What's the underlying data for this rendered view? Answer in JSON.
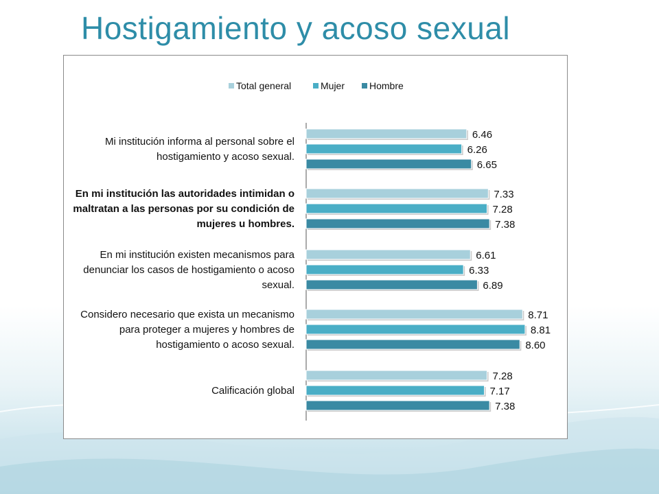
{
  "slide": {
    "title": "Hostigamiento y acoso sexual"
  },
  "colors": {
    "title": "#2e8da8",
    "series": [
      "#a8d0dc",
      "#4aaec6",
      "#3a8aa3"
    ]
  },
  "chart_data": {
    "type": "bar",
    "orientation": "horizontal",
    "categories": [
      [
        "Mi institución informa al personal sobre el",
        "hostigamiento y acoso sexual."
      ],
      [
        "En mi institución las autoridades intimidan o",
        "maltratan a las personas por su condición de",
        "mujeres u hombres."
      ],
      [
        "En mi institución existen mecanismos para",
        "denunciar los casos de hostigamiento o acoso",
        "sexual."
      ],
      [
        "Considero necesario que exista un mecanismo",
        "para proteger a mujeres y hombres de",
        "hostigamiento o acoso sexual."
      ],
      [
        "Calificación global"
      ]
    ],
    "series": [
      {
        "name": "Total general",
        "values": [
          6.46,
          7.33,
          6.61,
          8.71,
          7.28
        ],
        "labels": [
          "6.46",
          "7.33",
          "6.61",
          "8.71",
          "7.28"
        ]
      },
      {
        "name": "Mujer",
        "values": [
          6.26,
          7.28,
          6.33,
          8.81,
          7.17
        ],
        "labels": [
          "6.26",
          "7.28",
          "6.33",
          "8.81",
          "7.17"
        ]
      },
      {
        "name": "Hombre",
        "values": [
          6.65,
          7.38,
          6.89,
          8.6,
          7.38
        ],
        "labels": [
          "6.65",
          "7.38",
          "6.89",
          "8.60",
          "7.38"
        ]
      }
    ],
    "xlim": [
      0,
      10
    ],
    "legend": "top",
    "grid": false
  }
}
